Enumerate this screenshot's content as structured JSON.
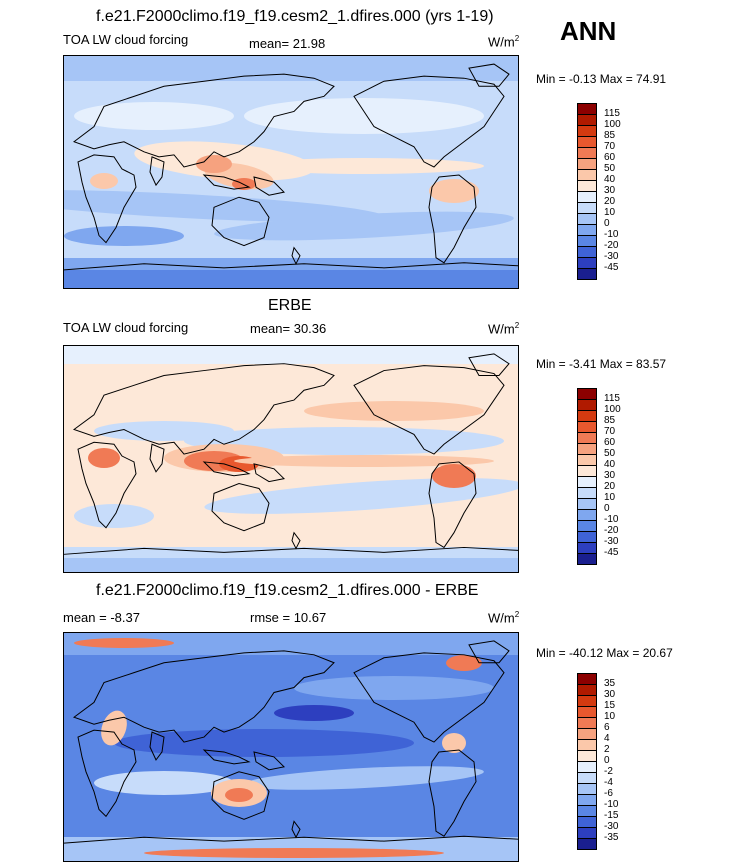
{
  "season": "ANN",
  "units_base": "W/m",
  "units_exp": "2",
  "colors": {
    "ocean_default": "#cfe3fb",
    "coast": "#000000"
  },
  "panels": [
    {
      "title": "f.e21.F2000climo.f19_f19.cesm2_1.dfires.000 (yrs 1-19)",
      "left_label": "TOA LW cloud forcing",
      "center_label": "mean=  21.98",
      "minmax": "Min =  -0.13 Max =  74.91",
      "levels": [
        "115",
        "100",
        "85",
        "70",
        "60",
        "50",
        "40",
        "30",
        "20",
        "10",
        "0",
        "-10",
        "-20",
        "-30",
        "-45"
      ],
      "palette": [
        "#8c0000",
        "#b01a00",
        "#d43a10",
        "#e8582e",
        "#f07a55",
        "#f6a27f",
        "#fbc8aa",
        "#fde8d8",
        "#e6f0fd",
        "#c7dcfa",
        "#a6c5f6",
        "#7fa7ef",
        "#5a86e4",
        "#3f63d6",
        "#2d3fbf",
        "#1a1f8f"
      ],
      "style": "model"
    },
    {
      "title": "ERBE",
      "left_label": "TOA LW cloud forcing",
      "center_label": "mean=  30.36",
      "minmax": "Min =  -3.41 Max =  83.57",
      "levels": [
        "115",
        "100",
        "85",
        "70",
        "60",
        "50",
        "40",
        "30",
        "20",
        "10",
        "0",
        "-10",
        "-20",
        "-30",
        "-45"
      ],
      "palette": [
        "#8c0000",
        "#b01a00",
        "#d43a10",
        "#e8582e",
        "#f07a55",
        "#f6a27f",
        "#fbc8aa",
        "#fde8d8",
        "#e6f0fd",
        "#c7dcfa",
        "#a6c5f6",
        "#7fa7ef",
        "#5a86e4",
        "#3f63d6",
        "#2d3fbf",
        "#1a1f8f"
      ],
      "style": "obs"
    },
    {
      "title": "f.e21.F2000climo.f19_f19.cesm2_1.dfires.000 - ERBE",
      "left_label": "mean =  -8.37",
      "center_label": "rmse =  10.67",
      "minmax": "Min = -40.12 Max =  20.67",
      "levels": [
        "35",
        "30",
        "15",
        "10",
        "6",
        "4",
        "2",
        "0",
        "-2",
        "-4",
        "-6",
        "-10",
        "-15",
        "-30",
        "-35"
      ],
      "palette": [
        "#8c0000",
        "#b01a00",
        "#d43a10",
        "#e8582e",
        "#f07a55",
        "#f6a27f",
        "#fbc8aa",
        "#fde8d8",
        "#e6f0fd",
        "#c7dcfa",
        "#a6c5f6",
        "#7fa7ef",
        "#5a86e4",
        "#3f63d6",
        "#2d3fbf",
        "#1a1f8f"
      ],
      "style": "diff"
    }
  ]
}
